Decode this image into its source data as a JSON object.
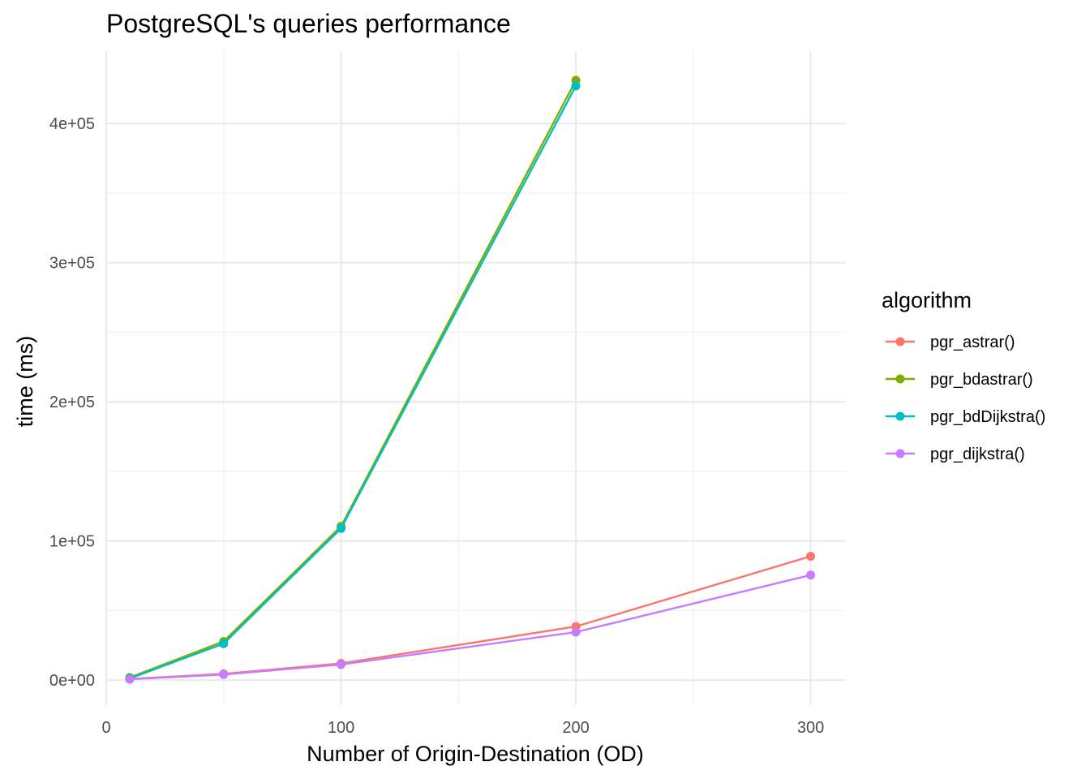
{
  "chart_data": {
    "type": "line",
    "title": "PostgreSQL's queries performance",
    "xlabel": "Number of Origin-Destination (OD)",
    "ylabel": "time (ms)",
    "xlim": [
      0,
      315
    ],
    "ylim": [
      -18000,
      452000
    ],
    "x_ticks": [
      0,
      100,
      200,
      300
    ],
    "x_tick_labels": [
      "0",
      "100",
      "200",
      "300"
    ],
    "x_minor_ticks": [
      50,
      150,
      250
    ],
    "y_ticks": [
      0,
      100000,
      200000,
      300000,
      400000
    ],
    "y_tick_labels": [
      "0e+00",
      "1e+05",
      "2e+05",
      "3e+05",
      "4e+05"
    ],
    "y_minor_ticks": [
      50000,
      150000,
      250000,
      350000
    ],
    "grid": true,
    "legend_title": "algorithm",
    "legend_position": "right",
    "series": [
      {
        "name": "pgr_astrar()",
        "color": "#F8766D",
        "x": [
          10,
          50,
          100,
          200,
          300
        ],
        "y": [
          800,
          4500,
          12000,
          38500,
          89000
        ]
      },
      {
        "name": "pgr_bdastrar()",
        "color": "#7CAE00",
        "x": [
          10,
          50,
          100,
          200
        ],
        "y": [
          1800,
          27800,
          110500,
          431000
        ]
      },
      {
        "name": "pgr_bdDijkstra()",
        "color": "#00BFC4",
        "x": [
          10,
          50,
          100,
          200
        ],
        "y": [
          1200,
          26200,
          109000,
          427000
        ]
      },
      {
        "name": "pgr_dijkstra()",
        "color": "#C77CFF",
        "x": [
          10,
          50,
          100,
          200,
          300
        ],
        "y": [
          600,
          4000,
          11200,
          34500,
          75500
        ]
      }
    ]
  }
}
